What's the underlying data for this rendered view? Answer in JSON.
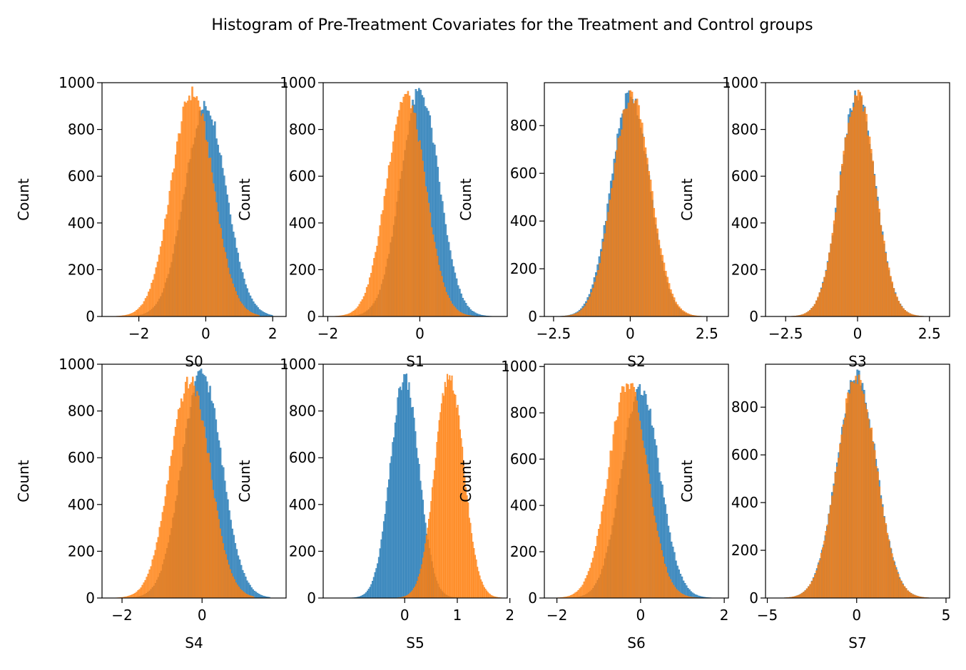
{
  "figure": {
    "title": "Histogram of Pre-Treatment Covariates for the Treatment and Control groups"
  },
  "colors": {
    "treatment": "#1f77b4",
    "control": "#ff7f0e"
  },
  "chart_data": [
    {
      "type": "histogram",
      "xlabel": "S0",
      "ylabel": "Count",
      "xlim": [
        -3.1,
        2.4
      ],
      "ylim": [
        0,
        1000
      ],
      "xticks": [
        -2,
        0,
        2
      ],
      "yticks": [
        0,
        200,
        400,
        600,
        800,
        1000
      ],
      "series": [
        {
          "color": "#1f77b4",
          "mean": 0.0,
          "sd": 0.62,
          "peak": 900,
          "range": [
            -2.6,
            2.0
          ]
        },
        {
          "color": "#ff7f0e",
          "mean": -0.4,
          "sd": 0.62,
          "peak": 955,
          "range": [
            -2.9,
            1.6
          ]
        }
      ]
    },
    {
      "type": "histogram",
      "xlabel": "S1",
      "ylabel": "Count",
      "xlim": [
        -2.1,
        1.9
      ],
      "ylim": [
        0,
        1000
      ],
      "xticks": [
        -2,
        0
      ],
      "yticks": [
        0,
        200,
        400,
        600,
        800,
        1000
      ],
      "series": [
        {
          "color": "#1f77b4",
          "mean": 0.0,
          "sd": 0.42,
          "peak": 960,
          "range": [
            -1.7,
            1.7
          ]
        },
        {
          "color": "#ff7f0e",
          "mean": -0.3,
          "sd": 0.42,
          "peak": 945,
          "range": [
            -2.0,
            1.2
          ]
        }
      ]
    },
    {
      "type": "histogram",
      "xlabel": "S2",
      "ylabel": "Count",
      "xlim": [
        -2.8,
        3.2
      ],
      "ylim": [
        0,
        980
      ],
      "xticks": [
        -2.5,
        0.0,
        2.5
      ],
      "yticks": [
        0,
        200,
        400,
        600,
        800
      ],
      "series": [
        {
          "color": "#1f77b4",
          "mean": 0.0,
          "sd": 0.62,
          "peak": 935,
          "range": [
            -2.6,
            2.8
          ]
        },
        {
          "color": "#ff7f0e",
          "mean": 0.05,
          "sd": 0.62,
          "peak": 925,
          "range": [
            -2.5,
            3.0
          ]
        }
      ]
    },
    {
      "type": "histogram",
      "xlabel": "S3",
      "ylabel": "Count",
      "xlim": [
        -3.2,
        3.2
      ],
      "ylim": [
        0,
        1000
      ],
      "xticks": [
        -2.5,
        0.0,
        2.5
      ],
      "yticks": [
        0,
        200,
        400,
        600,
        800,
        1000
      ],
      "series": [
        {
          "color": "#1f77b4",
          "mean": 0.0,
          "sd": 0.62,
          "peak": 945,
          "range": [
            -2.8,
            2.8
          ]
        },
        {
          "color": "#ff7f0e",
          "mean": 0.0,
          "sd": 0.62,
          "peak": 950,
          "range": [
            -2.8,
            2.8
          ]
        }
      ]
    },
    {
      "type": "histogram",
      "xlabel": "S4",
      "ylabel": "Count",
      "xlim": [
        -2.5,
        2.1
      ],
      "ylim": [
        0,
        1000
      ],
      "xticks": [
        -2,
        0
      ],
      "yticks": [
        0,
        200,
        400,
        600,
        800,
        1000
      ],
      "series": [
        {
          "color": "#1f77b4",
          "mean": 0.0,
          "sd": 0.5,
          "peak": 960,
          "range": [
            -2.0,
            1.7
          ]
        },
        {
          "color": "#ff7f0e",
          "mean": -0.3,
          "sd": 0.5,
          "peak": 925,
          "range": [
            -2.3,
            1.3
          ]
        }
      ]
    },
    {
      "type": "histogram",
      "xlabel": "S5",
      "ylabel": "Count",
      "xlim": [
        -1.55,
        1.95
      ],
      "ylim": [
        0,
        1000
      ],
      "xticks": [
        0,
        1,
        2
      ],
      "yticks": [
        0,
        200,
        400,
        600,
        800,
        1000
      ],
      "series": [
        {
          "color": "#1f77b4",
          "mean": 0.0,
          "sd": 0.27,
          "peak": 940,
          "range": [
            -1.2,
            1.2
          ]
        },
        {
          "color": "#ff7f0e",
          "mean": 0.85,
          "sd": 0.27,
          "peak": 950,
          "range": [
            -0.3,
            1.9
          ]
        }
      ]
    },
    {
      "type": "histogram",
      "xlabel": "S6",
      "ylabel": "Count",
      "xlim": [
        -2.3,
        2.1
      ],
      "ylim": [
        0,
        1010
      ],
      "xticks": [
        -2,
        0,
        2
      ],
      "yticks": [
        0,
        200,
        400,
        600,
        800,
        1000
      ],
      "series": [
        {
          "color": "#1f77b4",
          "mean": 0.0,
          "sd": 0.46,
          "peak": 900,
          "range": [
            -1.8,
            1.8
          ]
        },
        {
          "color": "#ff7f0e",
          "mean": -0.3,
          "sd": 0.46,
          "peak": 930,
          "range": [
            -2.1,
            1.4
          ]
        }
      ]
    },
    {
      "type": "histogram",
      "xlabel": "S7",
      "ylabel": "Count",
      "xlim": [
        -5.1,
        5.2
      ],
      "ylim": [
        0,
        980
      ],
      "xticks": [
        -5,
        0,
        5
      ],
      "yticks": [
        0,
        200,
        400,
        600,
        800
      ],
      "series": [
        {
          "color": "#1f77b4",
          "mean": 0.0,
          "sd": 1.1,
          "peak": 935,
          "range": [
            -4.8,
            4.6
          ]
        },
        {
          "color": "#ff7f0e",
          "mean": 0.0,
          "sd": 1.1,
          "peak": 925,
          "range": [
            -4.4,
            4.4
          ]
        }
      ]
    }
  ]
}
